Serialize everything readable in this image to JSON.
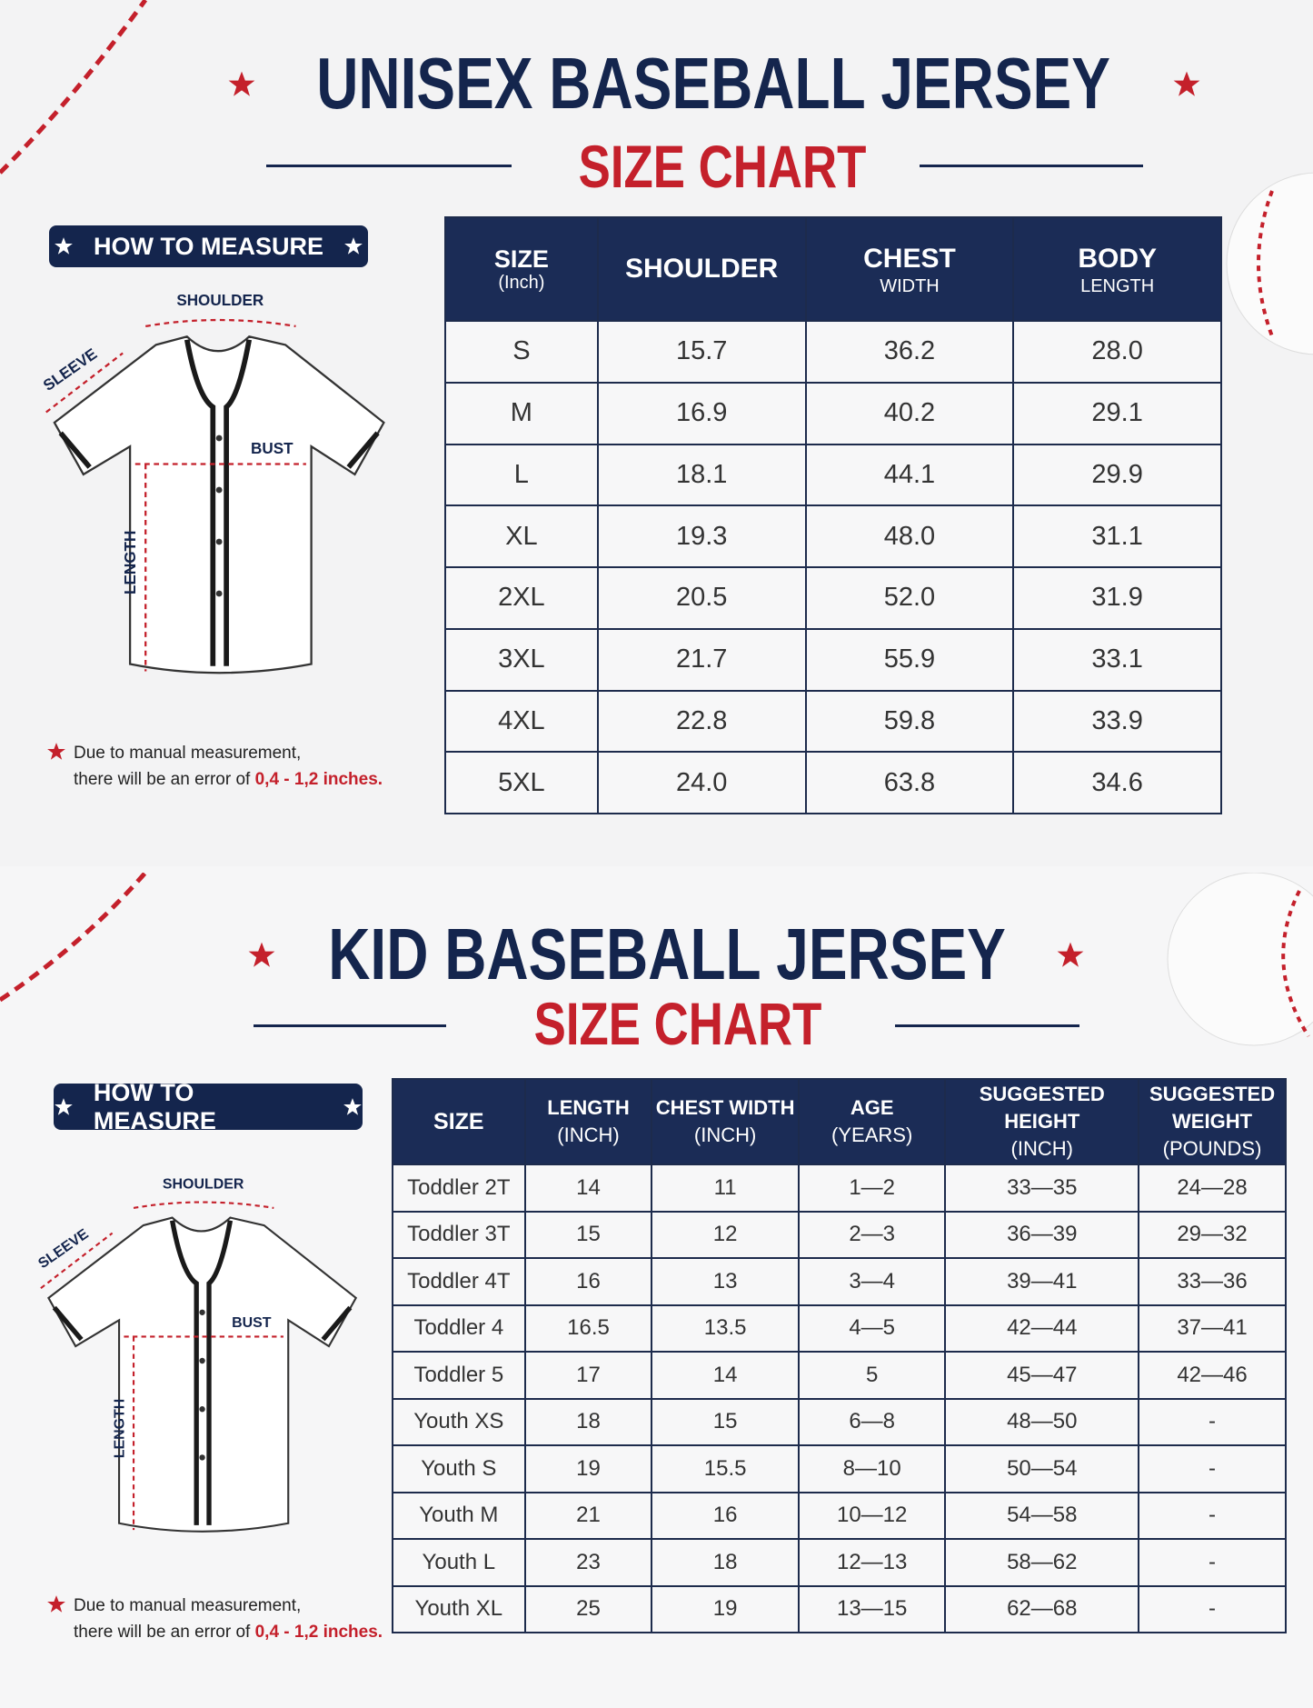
{
  "unisex": {
    "title": "UNISEX BASEBALL JERSEY",
    "subtitle": "SIZE CHART",
    "how_to_measure": "HOW TO MEASURE",
    "diagram": {
      "shoulder": "SHOULDER",
      "sleeve": "SLEEVE",
      "bust": "BUST",
      "length": "LENGTH"
    },
    "note": {
      "line1": "Due to manual measurement,",
      "line2": "there will be an error of",
      "highlight": "0,4 - 1,2 inches."
    },
    "table": {
      "header": [
        [
          "SIZE",
          "(Inch)"
        ],
        [
          "SHOULDER"
        ],
        [
          "CHEST",
          "WIDTH"
        ],
        [
          "BODY",
          "LENGTH"
        ]
      ],
      "rows": [
        [
          "S",
          "15.7",
          "36.2",
          "28.0"
        ],
        [
          "M",
          "16.9",
          "40.2",
          "29.1"
        ],
        [
          "L",
          "18.1",
          "44.1",
          "29.9"
        ],
        [
          "XL",
          "19.3",
          "48.0",
          "31.1"
        ],
        [
          "2XL",
          "20.5",
          "52.0",
          "31.9"
        ],
        [
          "3XL",
          "21.7",
          "55.9",
          "33.1"
        ],
        [
          "4XL",
          "22.8",
          "59.8",
          "33.9"
        ],
        [
          "5XL",
          "24.0",
          "63.8",
          "34.6"
        ]
      ]
    }
  },
  "kid": {
    "title": "KID BASEBALL JERSEY",
    "subtitle": "SIZE CHART",
    "how_to_measure": "HOW TO MEASURE",
    "diagram": {
      "shoulder": "SHOULDER",
      "sleeve": "SLEEVE",
      "bust": "BUST",
      "length": "LENGTH"
    },
    "note": {
      "line1": "Due to manual measurement,",
      "line2": "there will be an error of",
      "highlight": "0,4 - 1,2 inches."
    },
    "table": {
      "header": [
        [
          "SIZE"
        ],
        [
          "LENGTH",
          "(INCH)"
        ],
        [
          "CHEST WIDTH",
          "(INCH)"
        ],
        [
          "AGE",
          "(YEARS)"
        ],
        [
          "SUGGESTED HEIGHT",
          "(INCH)"
        ],
        [
          "SUGGESTED WEIGHT",
          "(POUNDS)"
        ]
      ],
      "rows": [
        [
          "Toddler 2T",
          "14",
          "11",
          "1—2",
          "33—35",
          "24—28"
        ],
        [
          "Toddler 3T",
          "15",
          "12",
          "2—3",
          "36—39",
          "29—32"
        ],
        [
          "Toddler 4T",
          "16",
          "13",
          "3—4",
          "39—41",
          "33—36"
        ],
        [
          "Toddler 4",
          "16.5",
          "13.5",
          "4—5",
          "42—44",
          "37—41"
        ],
        [
          "Toddler 5",
          "17",
          "14",
          "5",
          "45—47",
          "42—46"
        ],
        [
          "Youth XS",
          "18",
          "15",
          "6—8",
          "48—50",
          "-"
        ],
        [
          "Youth S",
          "19",
          "15.5",
          "8—10",
          "50—54",
          "-"
        ],
        [
          "Youth M",
          "21",
          "16",
          "10—12",
          "54—58",
          "-"
        ],
        [
          "Youth L",
          "23",
          "18",
          "12—13",
          "58—62",
          "-"
        ],
        [
          "Youth XL",
          "25",
          "19",
          "13—15",
          "62—68",
          "-"
        ]
      ]
    }
  }
}
